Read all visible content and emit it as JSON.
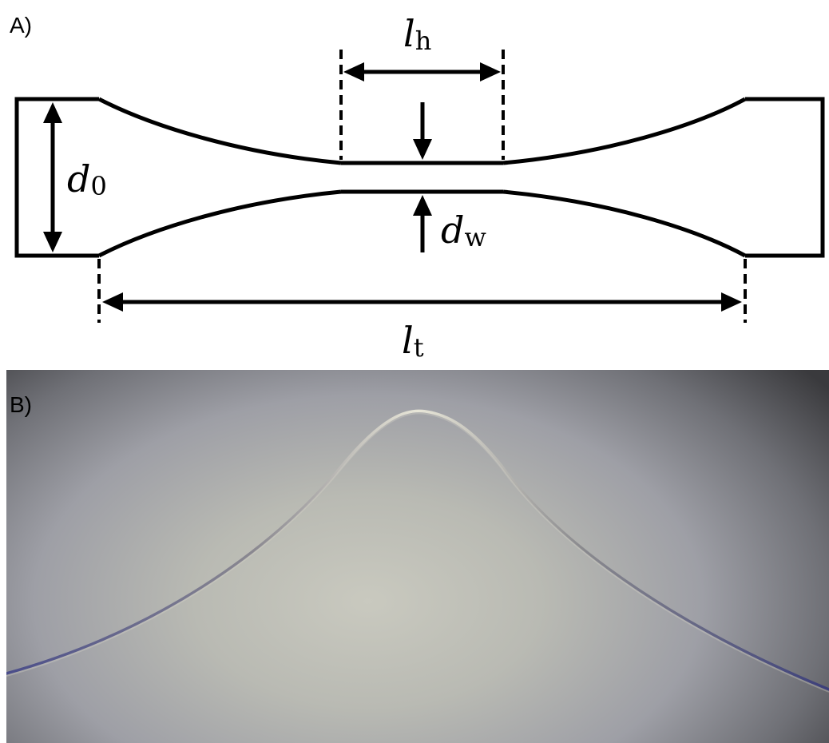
{
  "panel_a": {
    "label": "A)",
    "labels": {
      "d0_main": "d",
      "d0_sub": "0",
      "dw_main": "d",
      "dw_sub": "w",
      "lh_main": "l",
      "lh_sub": "h",
      "lt_main": "l",
      "lt_sub": "t"
    },
    "colors": {
      "stroke": "#000000",
      "background": "#ffffff"
    }
  },
  "panel_b": {
    "label": "B)",
    "description_icon": "micrograph-image",
    "colors": {
      "fiber_edge": "#4a4d8a",
      "fiber_highlight": "#e8e6d8"
    }
  }
}
